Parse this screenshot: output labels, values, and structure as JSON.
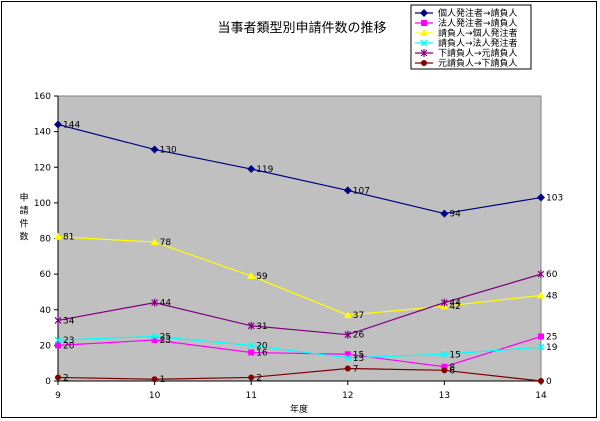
{
  "chart_data": {
    "type": "line",
    "title": "当事者類型別申請件数の推移",
    "xlabel": "年度",
    "ylabel": "申請件数",
    "categories": [
      "9",
      "10",
      "11",
      "12",
      "13",
      "14"
    ],
    "ylim": [
      0,
      160
    ],
    "yticks": [
      0,
      20,
      40,
      60,
      80,
      100,
      120,
      140,
      160
    ],
    "grid": false,
    "legend_position": "top-right",
    "plot_background": "#c0c0c0",
    "series": [
      {
        "name": "個人発注者→請負人",
        "color": "#000080",
        "marker": "diamond",
        "values": [
          144,
          130,
          119,
          107,
          94,
          103
        ]
      },
      {
        "name": "法人発注者→請負人",
        "color": "#ff00ff",
        "marker": "square",
        "values": [
          20,
          23,
          16,
          15,
          8,
          25
        ]
      },
      {
        "name": "請負人→個人発注者",
        "color": "#ffff00",
        "marker": "triangle",
        "values": [
          81,
          78,
          59,
          37,
          42,
          48
        ]
      },
      {
        "name": "請負人→法人発注者",
        "color": "#00ffff",
        "marker": "x",
        "values": [
          23,
          25,
          20,
          13,
          15,
          19
        ]
      },
      {
        "name": "下請負人→元請負人",
        "color": "#800080",
        "marker": "star",
        "values": [
          34,
          44,
          31,
          26,
          44,
          60
        ]
      },
      {
        "name": "元請負人→下請負人",
        "color": "#800000",
        "marker": "circle",
        "values": [
          2,
          1,
          2,
          7,
          6,
          0
        ]
      }
    ]
  }
}
